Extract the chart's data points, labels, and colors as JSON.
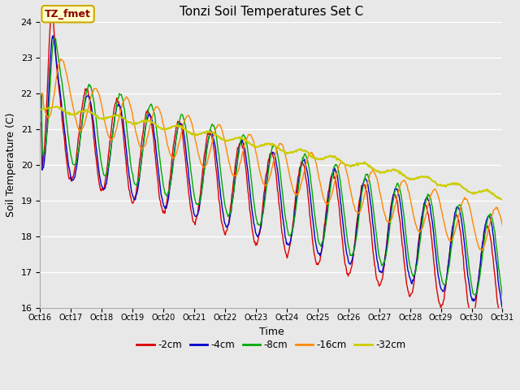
{
  "title": "Tonzi Soil Temperatures Set C",
  "xlabel": "Time",
  "ylabel": "Soil Temperature (C)",
  "ylim": [
    16.0,
    24.0
  ],
  "yticks": [
    16.0,
    17.0,
    18.0,
    19.0,
    20.0,
    21.0,
    22.0,
    23.0,
    24.0
  ],
  "xtick_labels": [
    "Oct 16",
    "Oct 17",
    "Oct 18",
    "Oct 19",
    "Oct 20",
    "Oct 21",
    "Oct 22",
    "Oct 23",
    "Oct 24",
    "Oct 25",
    "Oct 26",
    "Oct 27",
    "Oct 28",
    "Oct 29",
    "Oct 30",
    "Oct 31"
  ],
  "annotation_text": "TZ_fmet",
  "annotation_bg": "#ffffcc",
  "annotation_border": "#ccaa00",
  "series_colors": [
    "#dd0000",
    "#0000cc",
    "#00aa00",
    "#ff8800",
    "#cccc00"
  ],
  "series_labels": [
    "-2cm",
    "-4cm",
    "-8cm",
    "-16cm",
    "-32cm"
  ],
  "bg_color": "#e8e8e8",
  "plot_bg_color": "#e8e8e8",
  "n_points": 720,
  "num_days": 15
}
